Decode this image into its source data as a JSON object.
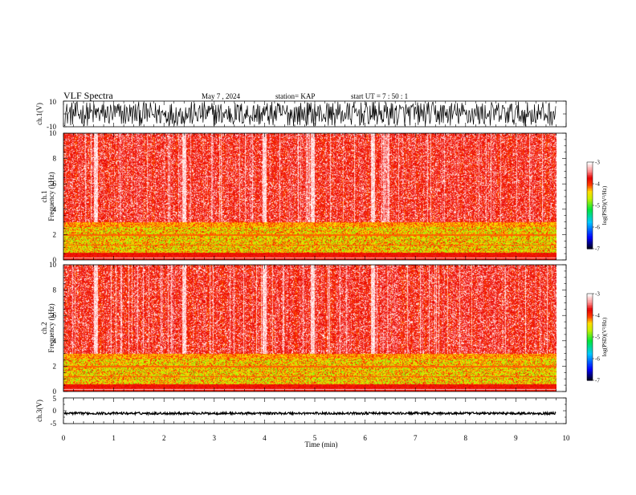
{
  "header": {
    "title": "VLF Spectra",
    "date": "May 7 , 2024",
    "station": "station= KAP",
    "start_time": "start  UT  =   7 : 50 : 1"
  },
  "chart_data": [
    {
      "type": "line",
      "panel": "ch1-waveform",
      "ylabel": "ch.1(V)",
      "ylim": [
        -10,
        10
      ],
      "yticks": [
        "10",
        "-10"
      ],
      "xlim": [
        0,
        10
      ],
      "color": "#000000"
    },
    {
      "type": "heatmap",
      "panel": "ch1-spectrogram",
      "ylabel": "ch.1\nFrequency (kHz)",
      "ylim": [
        0,
        10
      ],
      "yticks": [
        "0",
        "2",
        "4",
        "6",
        "8",
        "10"
      ],
      "xlim": [
        0,
        10
      ],
      "data_xmax": 9.8,
      "colorbar": {
        "label": "log(PSD)(V²/Hz)",
        "range": [
          -7,
          -3
        ],
        "ticks": [
          "-3",
          "-4",
          "-5",
          "-6",
          "-7"
        ]
      }
    },
    {
      "type": "heatmap",
      "panel": "ch2-spectrogram",
      "ylabel": "ch.2\nFrequency (kHz)",
      "ylim": [
        0,
        10
      ],
      "yticks": [
        "0",
        "2",
        "4",
        "6",
        "8",
        "10"
      ],
      "xlim": [
        0,
        10
      ],
      "data_xmax": 9.8,
      "colorbar": {
        "label": "log(PSD)(V²/Hz)",
        "range": [
          -7,
          -3
        ],
        "ticks": [
          "-3",
          "-4",
          "-5",
          "-6",
          "-7"
        ]
      }
    },
    {
      "type": "line",
      "panel": "ch3-waveform",
      "ylabel": "ch.3(V)",
      "ylim": [
        -5,
        5
      ],
      "yticks": [
        "5",
        "0",
        "-5"
      ],
      "xlim": [
        0,
        10
      ],
      "xlabel": "Time  (min)",
      "xticks": [
        "0",
        "1",
        "2",
        "3",
        "4",
        "5",
        "6",
        "7",
        "8",
        "9",
        "10"
      ],
      "color": "#000000"
    }
  ]
}
